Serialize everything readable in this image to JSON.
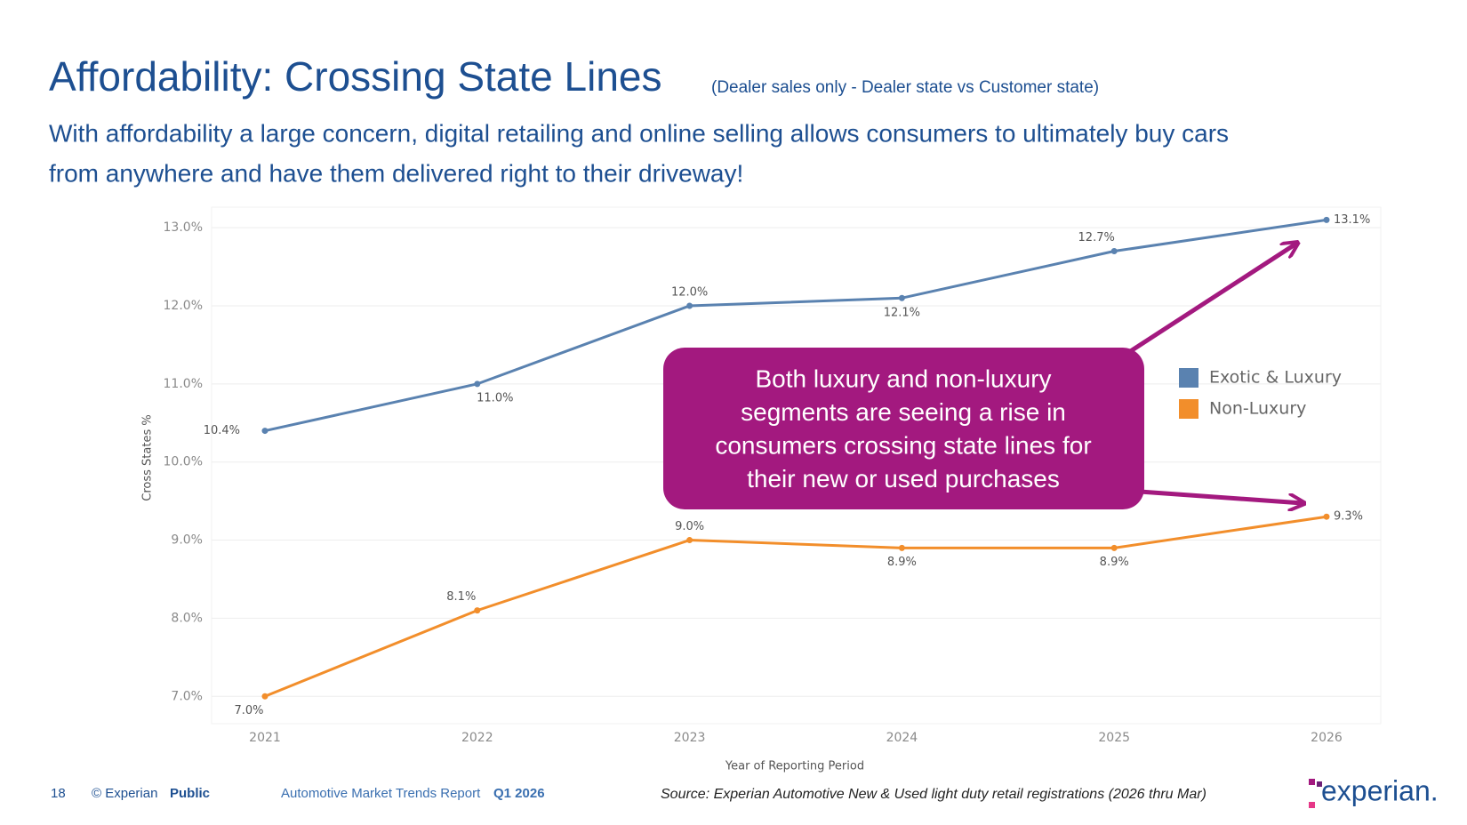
{
  "title": "Affordability: Crossing State Lines",
  "subtitle": "(Dealer sales only - Dealer state vs Customer state)",
  "description": [
    "With affordability a large concern, digital retailing and online selling allows consumers to ultimately buy cars",
    "from anywhere and have them delivered right to their driveway!"
  ],
  "chart_data": {
    "type": "line",
    "y_label": "Cross States %",
    "x_label": "Year of Reporting Period",
    "categories": [
      "2021",
      "2022",
      "2023",
      "2024",
      "2025",
      "2026"
    ],
    "series": [
      {
        "name": "Exotic & Luxury",
        "color": "#5a82b0",
        "values": [
          10.4,
          11.0,
          12.0,
          12.1,
          12.7,
          13.1
        ],
        "value_labels": [
          "10.4%",
          "11.0%",
          "12.0%",
          "12.1%",
          "12.7%",
          "13.1%"
        ]
      },
      {
        "name": "Non-Luxury",
        "color": "#f28e2b",
        "values": [
          7.0,
          8.1,
          9.0,
          8.9,
          8.9,
          9.3
        ],
        "value_labels": [
          "7.0%",
          "8.1%",
          "9.0%",
          "8.9%",
          "8.9%",
          "9.3%"
        ]
      }
    ],
    "ylim": [
      6.65,
      13.15
    ],
    "yticks": [
      {
        "value": 7,
        "label": "7.0%"
      },
      {
        "value": 8,
        "label": "8.0%"
      },
      {
        "value": 9,
        "label": "9.0%"
      },
      {
        "value": 10,
        "label": "10.0%"
      },
      {
        "value": 11,
        "label": "11.0%"
      },
      {
        "value": 12,
        "label": "12.0%"
      },
      {
        "value": 13,
        "label": "13.0%"
      }
    ],
    "grid": true,
    "legend": "right",
    "annotation": {
      "lines": [
        "Both luxury and non-luxury",
        "segments are seeing a rise in",
        "consumers crossing state lines for",
        "their new or used purchases"
      ],
      "color": "#a3197f"
    }
  },
  "footer": {
    "page": "18",
    "copyright": "© Experian",
    "classification": "Public",
    "report": "Automotive Market Trends Report",
    "period": "Q1 2026",
    "source": "Source: Experian Automotive New & Used light duty retail registrations (2026 thru Mar)",
    "logo": "experian."
  }
}
